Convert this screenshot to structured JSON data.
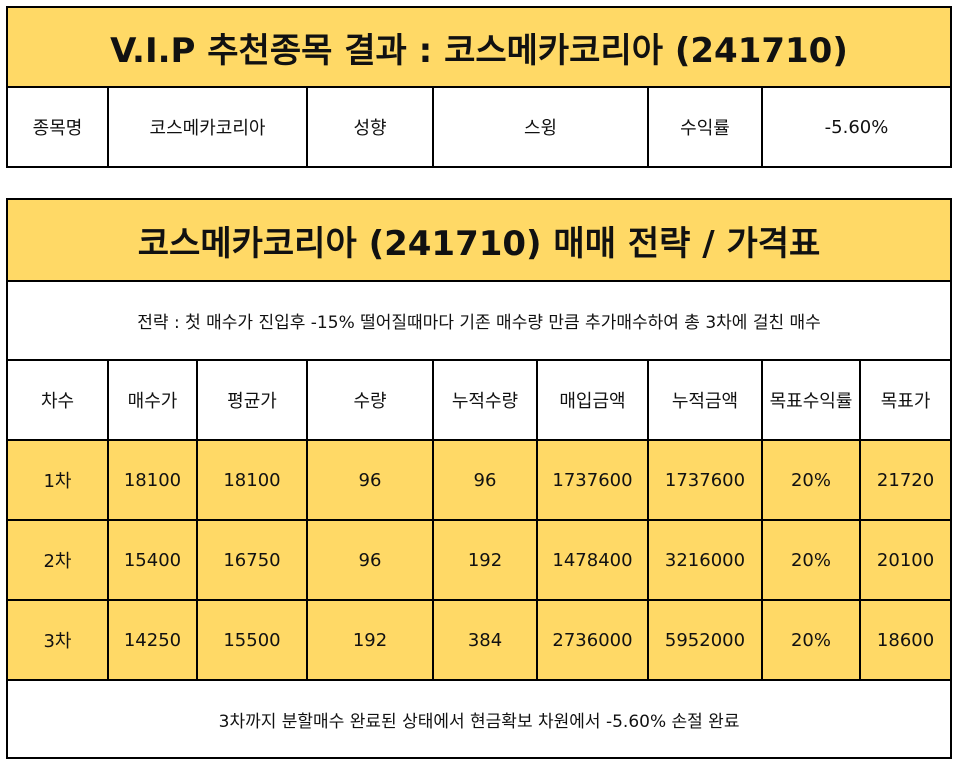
{
  "colors": {
    "header_fill": "#FFD966",
    "border": "#000000"
  },
  "top": {
    "title": "V.I.P 추천종목 결과 : 코스메카코리아 (241710)",
    "name_label": "종목명",
    "name_value": "코스메카코리아",
    "style_label": "성향",
    "style_value": "스윙",
    "return_label": "수익률",
    "return_value": "-5.60%"
  },
  "strategy": {
    "title": "코스메카코리아 (241710) 매매 전략 / 가격표",
    "description": "전략 : 첫 매수가 진입후 -15% 떨어질때마다 기존 매수량 만큼 추가매수하여 총 3차에 걸친 매수",
    "headers": [
      "차수",
      "매수가",
      "평균가",
      "수량",
      "누적수량",
      "매입금액",
      "누적금액",
      "목표수익률",
      "목표가"
    ],
    "rows": [
      [
        "1차",
        "18100",
        "18100",
        "96",
        "96",
        "1737600",
        "1737600",
        "20%",
        "21720"
      ],
      [
        "2차",
        "15400",
        "16750",
        "96",
        "192",
        "1478400",
        "3216000",
        "20%",
        "20100"
      ],
      [
        "3차",
        "14250",
        "15500",
        "192",
        "384",
        "2736000",
        "5952000",
        "20%",
        "18600"
      ]
    ],
    "footer": "3차까지 분할매수 완료된 상태에서 현금확보 차원에서 -5.60% 손절 완료"
  }
}
